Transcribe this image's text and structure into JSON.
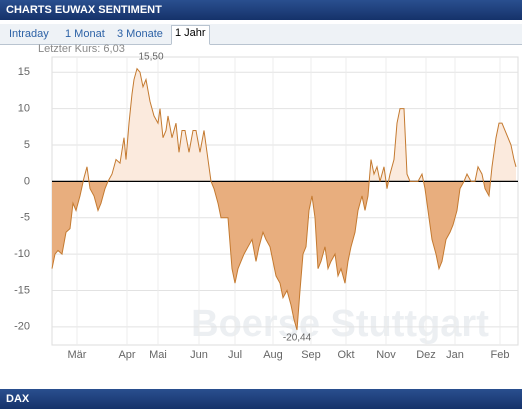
{
  "header": {
    "title": "CHARTS EUWAX SENTIMENT"
  },
  "tabs": [
    "Intraday",
    "1 Monat",
    "3 Monate",
    "1 Jahr"
  ],
  "active_tab": 3,
  "last_price": "Letzter Kurs: 6,03",
  "footer": {
    "title": "DAX"
  },
  "chart_data": {
    "type": "area",
    "watermark": "Boerse Stuttgart",
    "x": [
      0,
      3,
      6,
      10,
      14,
      18,
      21,
      24,
      28,
      32,
      35,
      38,
      42,
      46,
      49,
      53,
      56,
      60,
      64,
      68,
      72,
      74,
      77,
      80,
      82,
      85,
      88,
      91,
      94,
      98,
      102,
      106,
      108,
      111,
      114,
      116,
      120,
      124,
      127,
      130,
      133,
      137,
      141,
      144,
      148,
      152,
      155,
      159,
      162,
      166,
      169,
      173,
      176,
      180,
      183,
      186,
      189,
      192,
      196,
      200,
      204,
      207,
      211,
      214,
      218,
      221,
      224,
      228,
      231,
      235,
      239,
      242,
      245,
      248,
      251,
      254,
      257,
      260,
      263,
      266,
      269,
      273,
      276,
      279,
      283,
      286,
      289,
      293,
      296,
      299,
      303,
      306,
      310,
      313,
      316,
      319,
      322,
      325,
      328,
      332,
      335,
      338,
      342,
      345,
      348,
      352,
      355,
      358,
      362,
      366,
      370,
      373,
      376,
      380,
      384,
      387,
      390,
      394,
      398,
      401,
      405,
      408,
      412,
      415,
      419,
      423,
      426,
      430,
      433,
      437,
      440,
      444,
      447,
      450,
      453,
      456,
      459,
      462,
      464
    ],
    "values": [
      -12,
      -10,
      -9.5,
      -10,
      -7,
      -6.5,
      -3,
      -4,
      -2,
      0.5,
      2,
      -1,
      -2,
      -4,
      -3,
      -1,
      0,
      1,
      3,
      2.5,
      6,
      3,
      8,
      12,
      14,
      15.5,
      15,
      13,
      14,
      11,
      9,
      8,
      10,
      6,
      7,
      9,
      6,
      8,
      4,
      7,
      7,
      4,
      7,
      7,
      4,
      7,
      4,
      0,
      -1,
      -3,
      -5,
      -5,
      -5,
      -12,
      -14,
      -12,
      -11,
      -10,
      -9,
      -8,
      -11,
      -9,
      -7,
      -8,
      -9,
      -11,
      -13,
      -14,
      -16,
      -15,
      -17,
      -19,
      -20.44,
      -15,
      -10,
      -9,
      -4,
      -2,
      -5,
      -12,
      -11,
      -9,
      -12,
      -11,
      -10,
      -13,
      -12,
      -14,
      -11,
      -9,
      -7,
      -4,
      -2,
      -4,
      -2,
      3,
      1,
      2,
      0,
      2,
      -1,
      1,
      3,
      8,
      10,
      10,
      1,
      0,
      0,
      0,
      1,
      -1,
      -4,
      -8,
      -10,
      -12,
      -11,
      -8,
      -7,
      -6,
      -4,
      -1,
      0,
      1,
      0,
      0,
      2,
      1,
      -1,
      -2,
      2,
      6,
      8,
      8,
      7,
      6,
      5,
      3,
      2
    ],
    "xlim": [
      0,
      466
    ],
    "xticks": [
      {
        "value": 25,
        "label": "Mär"
      },
      {
        "value": 75,
        "label": "Apr"
      },
      {
        "value": 106,
        "label": "Mai"
      },
      {
        "value": 147,
        "label": "Jun"
      },
      {
        "value": 183,
        "label": "Jul"
      },
      {
        "value": 221,
        "label": "Aug"
      },
      {
        "value": 259,
        "label": "Sep"
      },
      {
        "value": 294,
        "label": "Okt"
      },
      {
        "value": 334,
        "label": "Nov"
      },
      {
        "value": 374,
        "label": "Dez"
      },
      {
        "value": 403,
        "label": "Jan"
      },
      {
        "value": 448,
        "label": "Feb"
      }
    ],
    "ylim": [
      -22.5,
      17.1
    ],
    "yticks": [
      -20,
      -15,
      -10,
      -5,
      0,
      5,
      10,
      15
    ],
    "grid": true,
    "line_color": "#c47a30",
    "positive_color": "#fbeadd",
    "negative_color": "#e8ae7e",
    "annotations": [
      {
        "label": "15,50",
        "x": 85,
        "value": 15.5
      },
      {
        "label": "-20,44",
        "x": 245,
        "value": -20.44
      }
    ]
  }
}
